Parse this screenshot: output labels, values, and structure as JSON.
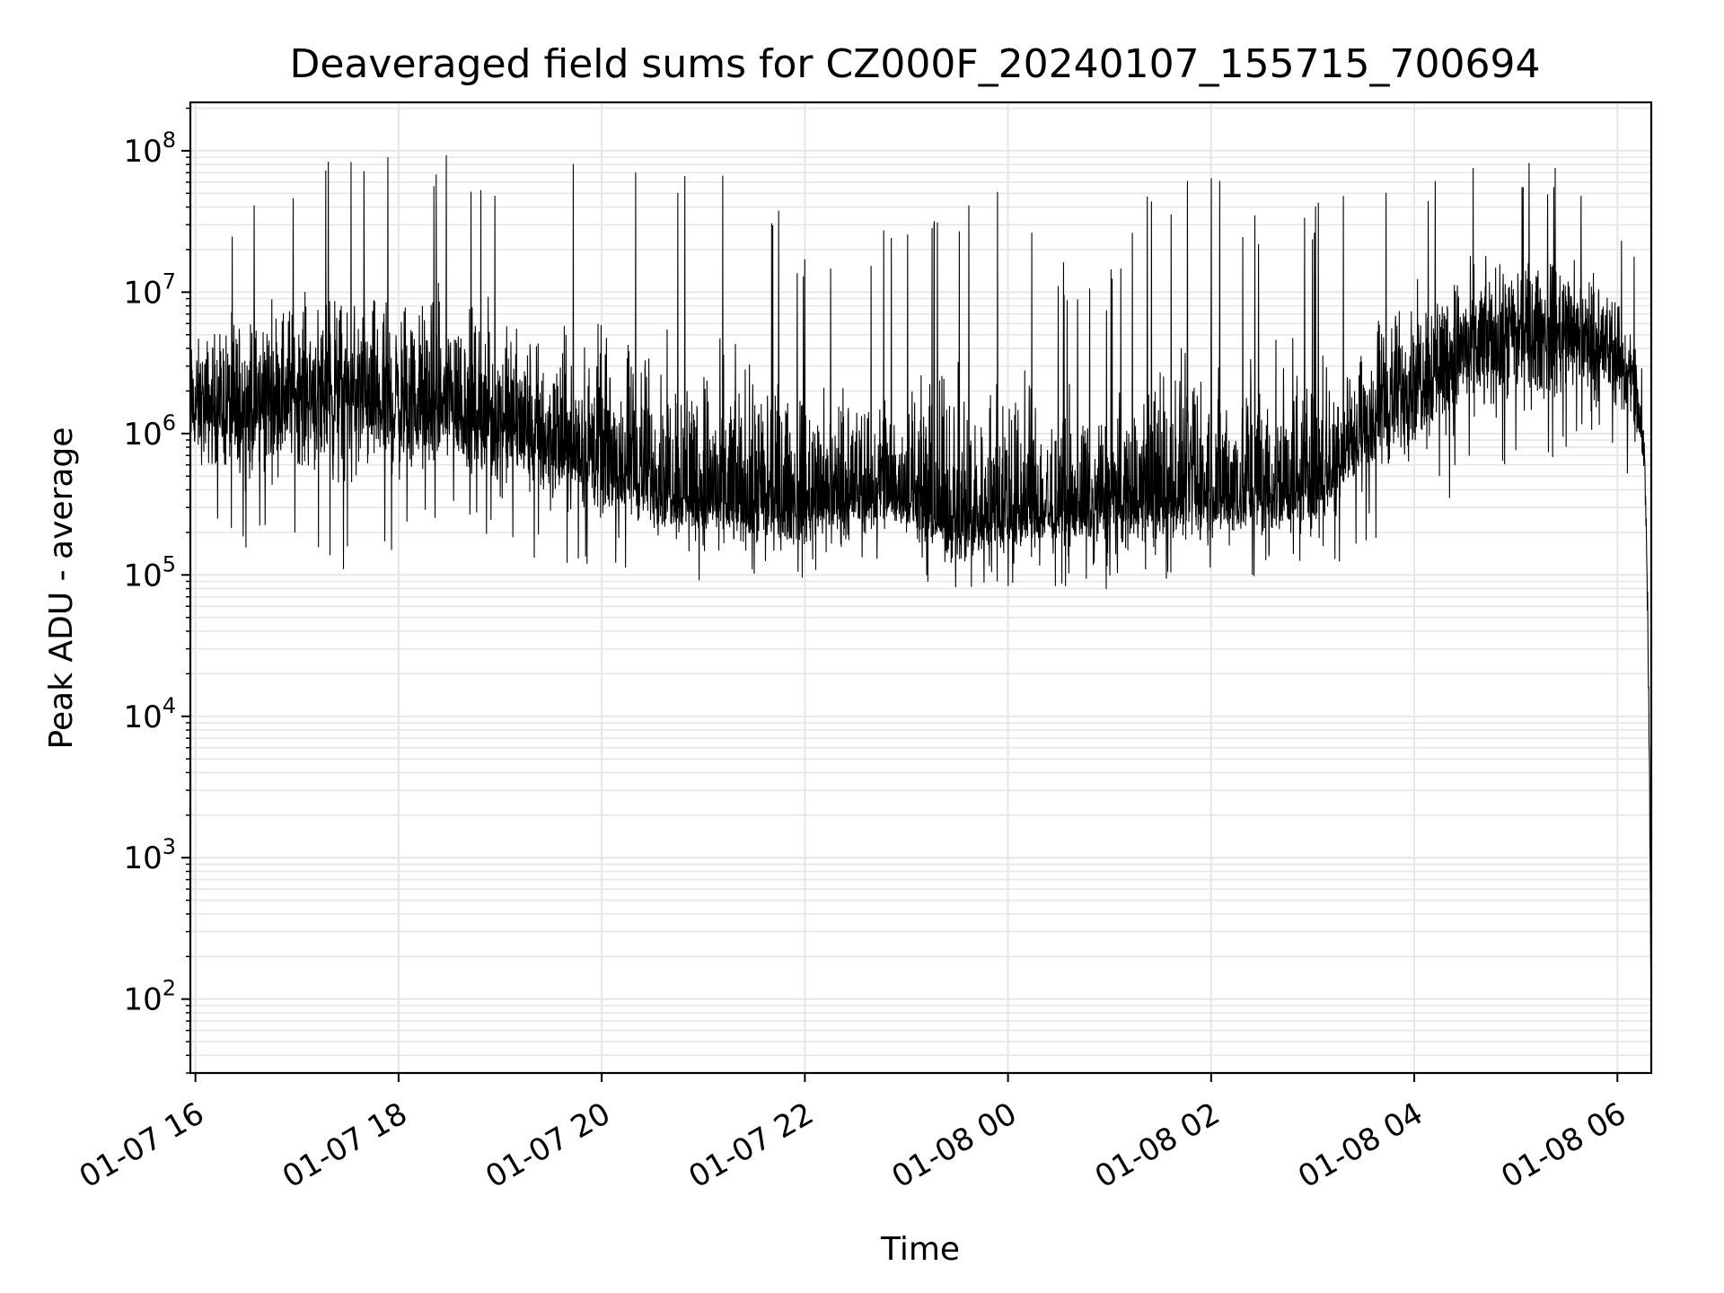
{
  "chart_data": {
    "type": "line",
    "title": "Deaveraged field sums for CZ000F_20240107_155715_700694",
    "xlabel": "Time",
    "ylabel": "Peak ADU - average",
    "yscale": "log",
    "ylim": [
      30,
      220000000
    ],
    "xlim": [
      "2024-01-07 15:57",
      "2024-01-08 06:20"
    ],
    "grid": true,
    "line_color": "#000000",
    "grid_color": "#e6e6e6",
    "x_ticks": [
      {
        "t": "2024-01-07 16:00",
        "label": "01-07 16"
      },
      {
        "t": "2024-01-07 18:00",
        "label": "01-07 18"
      },
      {
        "t": "2024-01-07 20:00",
        "label": "01-07 20"
      },
      {
        "t": "2024-01-07 22:00",
        "label": "01-07 22"
      },
      {
        "t": "2024-01-08 00:00",
        "label": "01-08 00"
      },
      {
        "t": "2024-01-08 02:00",
        "label": "01-08 02"
      },
      {
        "t": "2024-01-08 04:00",
        "label": "01-08 04"
      },
      {
        "t": "2024-01-08 06:00",
        "label": "01-08 06"
      }
    ],
    "y_ticks": [
      {
        "value": 100,
        "base": "10",
        "exp": "2"
      },
      {
        "value": 1000,
        "base": "10",
        "exp": "3"
      },
      {
        "value": 10000,
        "base": "10",
        "exp": "4"
      },
      {
        "value": 100000,
        "base": "10",
        "exp": "5"
      },
      {
        "value": 1000000,
        "base": "10",
        "exp": "6"
      },
      {
        "value": 10000000,
        "base": "10",
        "exp": "7"
      },
      {
        "value": 100000000,
        "base": "10",
        "exp": "8"
      }
    ],
    "series": [
      {
        "envelope": {
          "note_units": "time as YYYY-MM-DD HH:MM, values in ADU",
          "points": [
            {
              "t": "2024-01-07 15:57",
              "typ": 1500000,
              "min": 300000,
              "max": 20000000
            },
            {
              "t": "2024-01-07 16:30",
              "typ": 1500000,
              "min": 150000,
              "max": 75000000
            },
            {
              "t": "2024-01-07 17:00",
              "typ": 2000000,
              "min": 200000,
              "max": 90000000
            },
            {
              "t": "2024-01-07 17:30",
              "typ": 1800000,
              "min": 100000,
              "max": 90000000
            },
            {
              "t": "2024-01-07 18:00",
              "typ": 1500000,
              "min": 150000,
              "max": 105000000
            },
            {
              "t": "2024-01-07 18:30",
              "typ": 1500000,
              "min": 250000,
              "max": 110000000
            },
            {
              "t": "2024-01-07 19:00",
              "typ": 1200000,
              "min": 150000,
              "max": 70000000
            },
            {
              "t": "2024-01-07 19:30",
              "typ": 800000,
              "min": 120000,
              "max": 70000000
            },
            {
              "t": "2024-01-07 20:00",
              "typ": 600000,
              "min": 110000,
              "max": 105000000
            },
            {
              "t": "2024-01-07 20:30",
              "typ": 450000,
              "min": 100000,
              "max": 75000000
            },
            {
              "t": "2024-01-07 21:00",
              "typ": 350000,
              "min": 90000,
              "max": 75000000
            },
            {
              "t": "2024-01-07 21:30",
              "typ": 300000,
              "min": 80000,
              "max": 75000000
            },
            {
              "t": "2024-01-07 22:00",
              "typ": 300000,
              "min": 90000,
              "max": 20000000
            },
            {
              "t": "2024-01-07 22:30",
              "typ": 350000,
              "min": 110000,
              "max": 30000000
            },
            {
              "t": "2024-01-07 23:00",
              "typ": 350000,
              "min": 100000,
              "max": 32000000
            },
            {
              "t": "2024-01-07 23:30",
              "typ": 220000,
              "min": 60000,
              "max": 60000000
            },
            {
              "t": "2024-01-08 00:00",
              "typ": 250000,
              "min": 80000,
              "max": 55000000
            },
            {
              "t": "2024-01-08 00:30",
              "typ": 280000,
              "min": 80000,
              "max": 20000000
            },
            {
              "t": "2024-01-08 01:00",
              "typ": 300000,
              "min": 70000,
              "max": 15000000
            },
            {
              "t": "2024-01-08 01:30",
              "typ": 330000,
              "min": 90000,
              "max": 75000000
            },
            {
              "t": "2024-01-08 02:00",
              "typ": 350000,
              "min": 90000,
              "max": 80000000
            },
            {
              "t": "2024-01-08 02:30",
              "typ": 380000,
              "min": 90000,
              "max": 40000000
            },
            {
              "t": "2024-01-08 03:00",
              "typ": 400000,
              "min": 100000,
              "max": 45000000
            },
            {
              "t": "2024-01-08 03:30",
              "typ": 1000000,
              "min": 150000,
              "max": 60000000
            },
            {
              "t": "2024-01-08 04:00",
              "typ": 2500000,
              "min": 250000,
              "max": 60000000
            },
            {
              "t": "2024-01-08 04:30",
              "typ": 4000000,
              "min": 400000,
              "max": 85000000
            },
            {
              "t": "2024-01-08 05:00",
              "typ": 5000000,
              "min": 500000,
              "max": 85000000
            },
            {
              "t": "2024-01-08 05:30",
              "typ": 5000000,
              "min": 700000,
              "max": 90000000
            },
            {
              "t": "2024-01-08 06:00",
              "typ": 3500000,
              "min": 700000,
              "max": 60000000
            },
            {
              "t": "2024-01-08 06:10",
              "typ": 2000000,
              "min": 300000,
              "max": 20000000
            },
            {
              "t": "2024-01-08 06:16",
              "typ": 700000,
              "min": 300000,
              "max": 2000000
            },
            {
              "t": "2024-01-08 06:18",
              "typ": 50000,
              "min": 20000,
              "max": 100000
            },
            {
              "t": "2024-01-08 06:19",
              "typ": 3000,
              "min": 1000,
              "max": 5000
            },
            {
              "t": "2024-01-08 06:20",
              "typ": 70,
              "min": 60,
              "max": 100
            }
          ]
        }
      }
    ]
  }
}
